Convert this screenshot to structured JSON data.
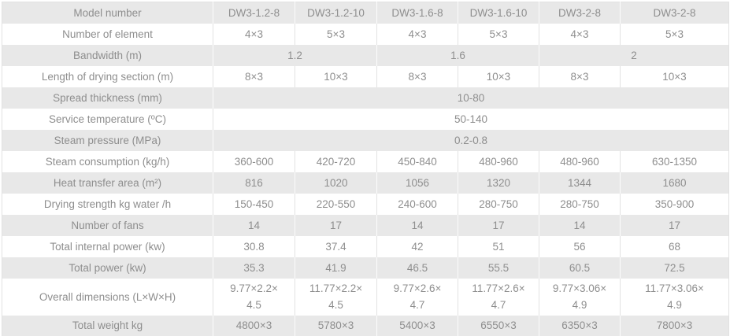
{
  "table": {
    "data_column_count": 6,
    "colors": {
      "row_shaded_bg": "#e8e8e8",
      "row_plain_bg": "#ffffff",
      "text": "#8e8e8e",
      "grid_line": "#e2e2e2"
    },
    "rows": [
      {
        "label": "Model number",
        "values": [
          "DW3-1.2-8",
          "DW3-1.2-10",
          "DW3-1.6-8",
          "DW3-1.6-10",
          "DW3-2-8",
          "DW3-2-8"
        ]
      },
      {
        "label": "Number of element",
        "values": [
          "4×3",
          "5×3",
          "4×3",
          "5×3",
          "4×3",
          "5×3"
        ]
      },
      {
        "label": "Bandwidth (m)",
        "values": [
          "1.2",
          "1.6",
          "2"
        ]
      },
      {
        "label": "Length of drying section (m)",
        "values": [
          "8×3",
          "10×3",
          "8×3",
          "10×3",
          "8×3",
          "10×3"
        ]
      },
      {
        "label": "Spread thickness (mm)",
        "values": [
          "10-80"
        ]
      },
      {
        "label": "Service temperature (ºC)",
        "values": [
          "50-140"
        ]
      },
      {
        "label": "Steam pressure (MPa)",
        "values": [
          "0.2-0.8"
        ]
      },
      {
        "label": "Steam consumption (kg/h)",
        "values": [
          "360-600",
          "420-720",
          "450-840",
          "480-960",
          "480-960",
          "630-1350"
        ]
      },
      {
        "label": "Heat transfer area (m²)",
        "values": [
          "816",
          "1020",
          "1056",
          "1320",
          "1344",
          "1680"
        ]
      },
      {
        "label": "Drying strength kg water /h",
        "values": [
          "150-450",
          "220-550",
          "240-600",
          "280-750",
          "280-750",
          "350-900"
        ]
      },
      {
        "label": "Number of fans",
        "values": [
          "14",
          "17",
          "14",
          "17",
          "14",
          "17"
        ]
      },
      {
        "label": "Total internal power (kw)",
        "values": [
          "30.8",
          "37.4",
          "42",
          "51",
          "56",
          "68"
        ]
      },
      {
        "label": "Total power (kw)",
        "values": [
          "35.3",
          "41.9",
          "46.5",
          "55.5",
          "60.5",
          "72.5"
        ]
      },
      {
        "label": "Overall dimensions (L×W×H)",
        "values": [
          "9.77×2.2×\n4.5",
          "11.77×2.2×\n4.5",
          "9.77×2.6×\n4.7",
          "11.77×2.6×\n4.7",
          "9.77×3.06×\n4.9",
          "11.77×3.06×\n4.9"
        ]
      },
      {
        "label": "Total weight kg",
        "values": [
          "4800×3",
          "5780×3",
          "5400×3",
          "6550×3",
          "6350×3",
          "7800×3"
        ]
      }
    ]
  }
}
